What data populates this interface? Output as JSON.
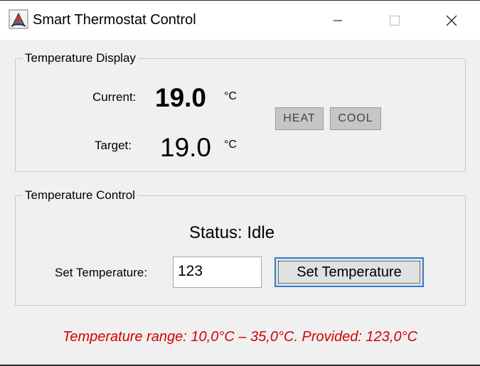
{
  "window": {
    "title": "Smart Thermostat Control",
    "icon": "java-app-icon",
    "minimize_icon": "minimize-icon",
    "maximize_icon": "maximize-icon",
    "close_icon": "close-icon"
  },
  "display_group": {
    "legend": "Temperature Display",
    "current_label": "Current:",
    "current_value": "19.0",
    "current_unit": "°C",
    "target_label": "Target:",
    "target_value": "19.0",
    "target_unit": "°C",
    "heat_label": "HEAT",
    "cool_label": "COOL"
  },
  "control_group": {
    "legend": "Temperature Control",
    "status": "Status: Idle",
    "set_label": "Set Temperature:",
    "input_value": "123",
    "button_label": "Set Temperature"
  },
  "error_message": "Temperature range: 10,0°C – 35,0°C. Provided: 123,0°C",
  "colors": {
    "error": "#d40000",
    "focus_border": "#2e7dd1",
    "indicator": "#c6c6c6"
  }
}
